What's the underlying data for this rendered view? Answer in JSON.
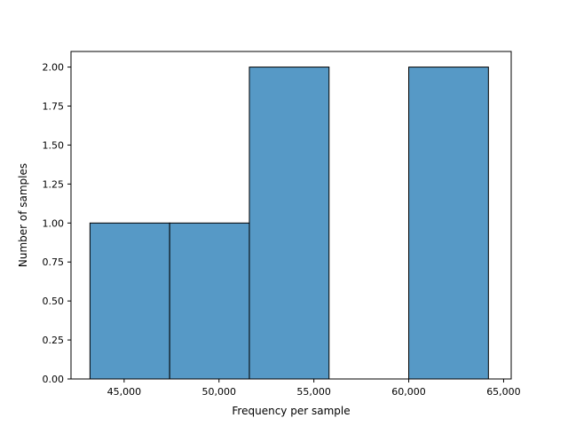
{
  "chart_data": {
    "type": "bar",
    "title": "",
    "xlabel": "Frequency per sample",
    "ylabel": "Number of samples",
    "xlim": [
      42200,
      65400
    ],
    "ylim": [
      0,
      2.1
    ],
    "grid": false,
    "bins": [
      {
        "x0": 43200,
        "x1": 47400,
        "count": 1
      },
      {
        "x0": 47400,
        "x1": 51600,
        "count": 1
      },
      {
        "x0": 51600,
        "x1": 55800,
        "count": 2
      },
      {
        "x0": 55800,
        "x1": 60000,
        "count": 0
      },
      {
        "x0": 60000,
        "x1": 64200,
        "count": 2
      }
    ],
    "xticks": [
      {
        "value": 45000,
        "label": "45,000"
      },
      {
        "value": 50000,
        "label": "50,000"
      },
      {
        "value": 55000,
        "label": "55,000"
      },
      {
        "value": 60000,
        "label": "60,000"
      },
      {
        "value": 65000,
        "label": "65,000"
      }
    ],
    "yticks": [
      {
        "value": 0,
        "label": "0.00"
      },
      {
        "value": 0.25,
        "label": "0.25"
      },
      {
        "value": 0.5,
        "label": "0.50"
      },
      {
        "value": 0.75,
        "label": "0.75"
      },
      {
        "value": 1.0,
        "label": "1.00"
      },
      {
        "value": 1.25,
        "label": "1.25"
      },
      {
        "value": 1.5,
        "label": "1.50"
      },
      {
        "value": 1.75,
        "label": "1.75"
      },
      {
        "value": 2.0,
        "label": "2.00"
      }
    ],
    "colors": {
      "bar_fill": "#5699c6",
      "bar_edge": "#000000",
      "axis": "#000000"
    }
  }
}
